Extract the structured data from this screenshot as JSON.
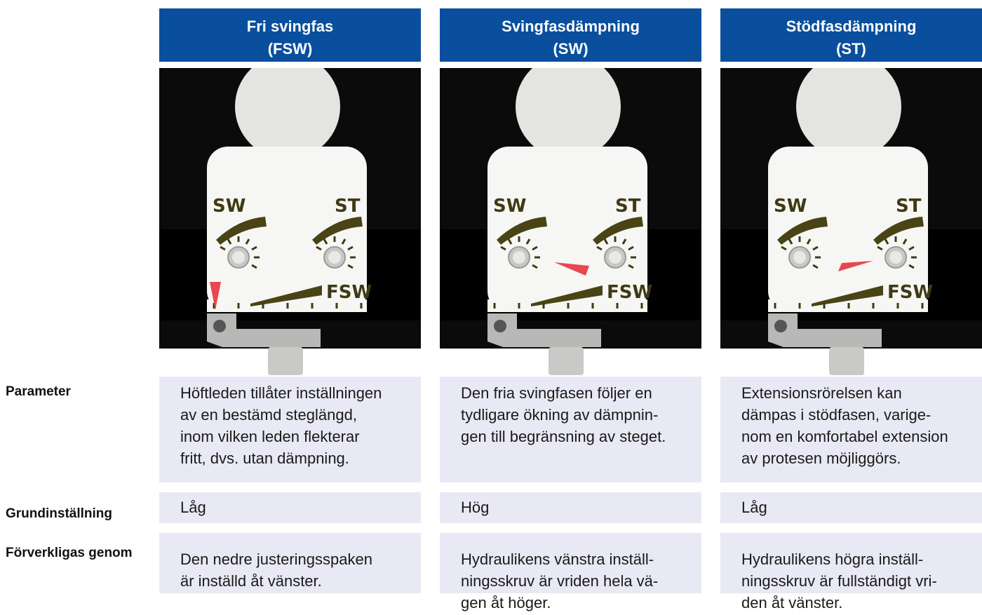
{
  "row_labels": [
    "Parameter",
    "Grundinställning",
    "Förverkligas genom"
  ],
  "dial_labels": {
    "sw": "SW",
    "st": "ST",
    "fsw": "FSW"
  },
  "columns": [
    {
      "title": [
        "Fri svingfas",
        "(FSW)"
      ],
      "parameter": [
        "Höftleden tillåter inställningen",
        "av en bestämd steglängd,",
        "inom vilken leden flekterar",
        "fritt, dvs. utan dämpning."
      ],
      "default": "Låg",
      "realized_by": [
        "Den nedre justeringsspaken",
        "är inställd åt vänster."
      ]
    },
    {
      "title": [
        "Svingfasdämpning",
        "(SW)"
      ],
      "parameter": [
        "Den fria svingfasen följer en",
        "tydligare ökning av dämpnin-",
        "gen till begränsning av steget."
      ],
      "default": "Hög",
      "realized_by": [
        "Hydraulikens vänstra inställ-",
        "ningsskruv är vriden hela vä-",
        "gen åt höger."
      ]
    },
    {
      "title": [
        "Stödfasdämpning",
        "(ST)"
      ],
      "parameter": [
        "Extensionsrörelsen kan",
        "dämpas i stödfasen, varige-",
        "nom en komfortabel extension",
        "av protesen  möjliggörs."
      ],
      "default": "Låg",
      "realized_by": [
        "Hydraulikens högra inställ-",
        "ningsskruv är fullständigt vri-",
        "den åt vänster."
      ]
    }
  ]
}
